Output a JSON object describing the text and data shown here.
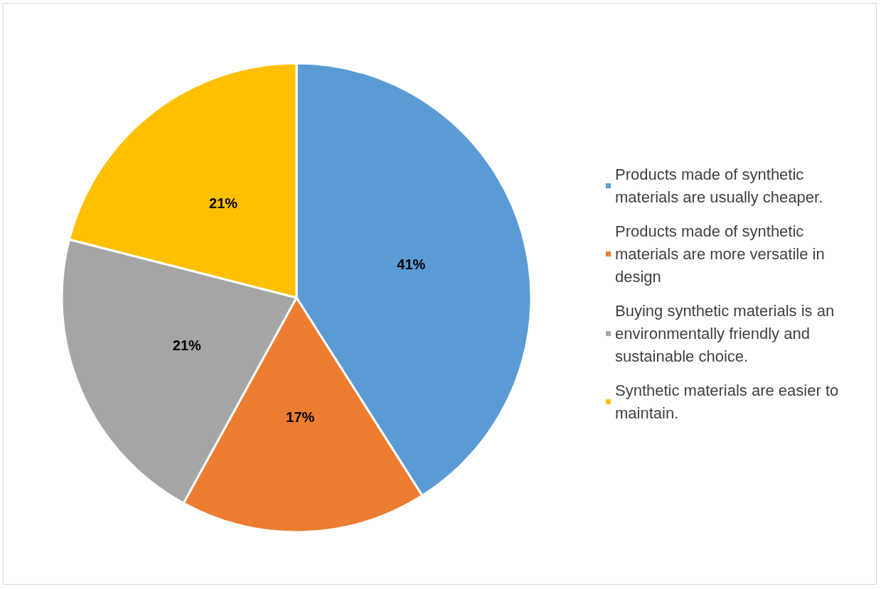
{
  "chart_data": {
    "type": "pie",
    "categories": [
      "Products made of synthetic materials are usually cheaper.",
      "Products made of synthetic materials are more versatile in design",
      "Buying synthetic materials is an environmentally friendly and sustainable choice.",
      "Synthetic materials are easier to maintain."
    ],
    "values": [
      41,
      17,
      21,
      21
    ],
    "colors": [
      "#5b9bd5",
      "#ed7d31",
      "#a5a5a5",
      "#ffc000"
    ],
    "value_labels": [
      "41%",
      "17%",
      "21%",
      "21%"
    ],
    "legend": "right"
  }
}
